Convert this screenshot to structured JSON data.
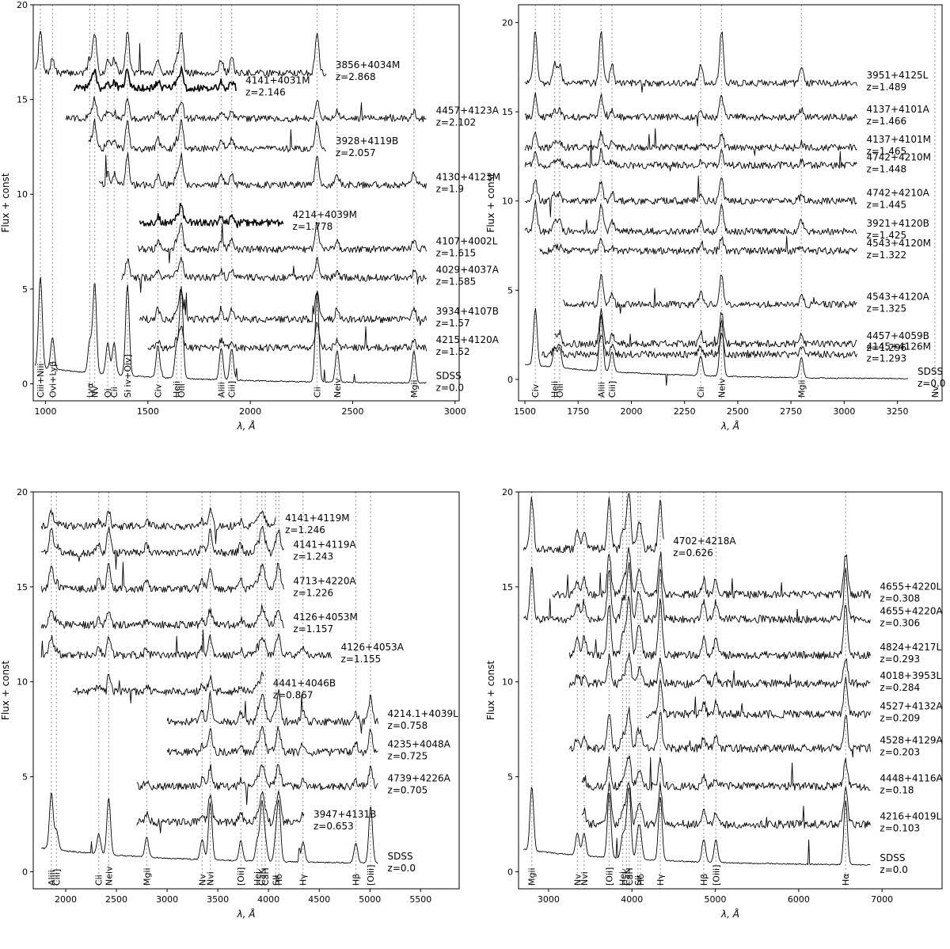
{
  "chart_data": [
    {
      "type": "line",
      "panel": "top-left",
      "xlabel": "λ, Å",
      "ylabel": "Flux + const",
      "xlim": [
        940,
        3020
      ],
      "ylim": [
        -0.9,
        20
      ],
      "xticks": [
        1000,
        1500,
        2000,
        2500,
        3000
      ],
      "yticks": [
        0,
        5,
        10,
        15,
        20
      ],
      "lines": [
        {
          "x": 975,
          "label": "Ciii+Niii"
        },
        {
          "x": 1034,
          "label": "Ovi+Lyβ"
        },
        {
          "x": 1216,
          "label": "Lyα"
        },
        {
          "x": 1240,
          "label": "Nv"
        },
        {
          "x": 1304,
          "label": "Oi"
        },
        {
          "x": 1335,
          "label": "Cii"
        },
        {
          "x": 1400,
          "label": "Si iv+Oiv]"
        },
        {
          "x": 1549,
          "label": "Civ"
        },
        {
          "x": 1640,
          "label": "Heii"
        },
        {
          "x": 1663,
          "label": "Oiii"
        },
        {
          "x": 1858,
          "label": "Aliii"
        },
        {
          "x": 1909,
          "label": "Ciii]"
        },
        {
          "x": 2326,
          "label": "Cii"
        },
        {
          "x": 2424,
          "label": "Neiv"
        },
        {
          "x": 2799,
          "label": "Mgii"
        }
      ],
      "series": [
        {
          "label": "3856+4034M",
          "z": "z=2.868",
          "x0": 950,
          "x1": 2370,
          "base": 16.4,
          "amp": 2.2,
          "lw": 0.9
        },
        {
          "label": "4141+4031M",
          "z": "z=2.146",
          "x0": 1140,
          "x1": 1930,
          "base": 15.6,
          "amp": 1.0,
          "lw": 1.6
        },
        {
          "label": "4457+4123A",
          "z": "z=2.102",
          "x0": 1100,
          "x1": 2860,
          "base": 14.0,
          "amp": 1.0,
          "lw": 0.9
        },
        {
          "label": "3928+4119B",
          "z": "z=2.057",
          "x0": 1210,
          "x1": 2370,
          "base": 12.4,
          "amp": 1.4,
          "lw": 0.9
        },
        {
          "label": "4130+4123M",
          "z": "z=1.9",
          "x0": 1260,
          "x1": 2860,
          "base": 10.5,
          "amp": 1.6,
          "lw": 0.9
        },
        {
          "label": "4214+4039M",
          "z": "z=1.778",
          "x0": 1460,
          "x1": 2160,
          "base": 8.5,
          "amp": 1.0,
          "lw": 1.4
        },
        {
          "label": "4107+4002L",
          "z": "z=1.615",
          "x0": 1450,
          "x1": 2860,
          "base": 7.1,
          "amp": 1.4,
          "lw": 0.9
        },
        {
          "label": "4029+4037A",
          "z": "z=1.585",
          "x0": 1370,
          "x1": 2860,
          "base": 5.6,
          "amp": 1.0,
          "lw": 0.9
        },
        {
          "label": "3934+4107B",
          "z": "z=1.57",
          "x0": 1460,
          "x1": 2860,
          "base": 3.4,
          "amp": 1.6,
          "lw": 0.9
        },
        {
          "label": "4215+4120A",
          "z": "z=1.52",
          "x0": 1500,
          "x1": 2860,
          "base": 1.9,
          "amp": 1.2,
          "lw": 0.9
        },
        {
          "label": "SDSS",
          "z": "z=0.0",
          "x0": 950,
          "x1": 2860,
          "base": 0.0,
          "amp": 4.8,
          "lw": 0.9
        }
      ]
    },
    {
      "type": "line",
      "panel": "top-right",
      "xlabel": "λ, Å",
      "ylabel": "Flux + const",
      "xlim": [
        1470,
        3460
      ],
      "ylim": [
        -1.2,
        21
      ],
      "xticks": [
        1500,
        1750,
        2000,
        2250,
        2500,
        2750,
        3000,
        3250
      ],
      "yticks": [
        0,
        5,
        10,
        15,
        20
      ],
      "lines": [
        {
          "x": 1549,
          "label": "Civ"
        },
        {
          "x": 1640,
          "label": "Heii"
        },
        {
          "x": 1663,
          "label": "Oiii"
        },
        {
          "x": 1858,
          "label": "Aliii"
        },
        {
          "x": 1909,
          "label": "Ciii]"
        },
        {
          "x": 2326,
          "label": "Cii"
        },
        {
          "x": 2424,
          "label": "Neiv"
        },
        {
          "x": 2799,
          "label": "Mgii"
        },
        {
          "x": 3426,
          "label": "Nv"
        }
      ],
      "series": [
        {
          "label": "3951+4125L",
          "z": "z=1.489",
          "x0": 1500,
          "x1": 3060,
          "base": 16.6,
          "amp": 3.0,
          "lw": 0.9
        },
        {
          "label": "4137+4101A",
          "z": "z=1.466",
          "x0": 1500,
          "x1": 3060,
          "base": 14.7,
          "amp": 1.2,
          "lw": 0.9
        },
        {
          "label": "4137+4101M",
          "z": "z=1.465",
          "x0": 1500,
          "x1": 3060,
          "base": 13.0,
          "amp": 0.8,
          "lw": 0.9
        },
        {
          "label": "4742+4210M",
          "z": "z=1.448",
          "x0": 1500,
          "x1": 3060,
          "base": 12.0,
          "amp": 0.8,
          "lw": 0.9
        },
        {
          "label": "4742+4210A",
          "z": "z=1.445",
          "x0": 1500,
          "x1": 3060,
          "base": 10.0,
          "amp": 1.2,
          "lw": 0.9
        },
        {
          "label": "3921+4120B",
          "z": "z=1.425",
          "x0": 1500,
          "x1": 3060,
          "base": 8.3,
          "amp": 1.6,
          "lw": 0.9
        },
        {
          "label": "4543+4120M",
          "z": "z=1.322",
          "x0": 1570,
          "x1": 3060,
          "base": 7.2,
          "amp": 0.7,
          "lw": 0.9
        },
        {
          "label": "4543+4120A",
          "z": "z=1.325",
          "x0": 1680,
          "x1": 3060,
          "base": 4.2,
          "amp": 1.8,
          "lw": 0.9
        },
        {
          "label": "4457+4059B",
          "z": "z=1.296",
          "x0": 1640,
          "x1": 3060,
          "base": 2.0,
          "amp": 1.8,
          "lw": 0.9
        },
        {
          "label": "4145+4126M",
          "z": "z=1.293",
          "x0": 1580,
          "x1": 3060,
          "base": 1.4,
          "amp": 1.2,
          "lw": 0.9
        },
        {
          "label": "SDSS",
          "z": "z=0.0",
          "x0": 1500,
          "x1": 3300,
          "base": 0.0,
          "amp": 3.2,
          "lw": 0.9
        }
      ]
    },
    {
      "type": "line",
      "panel": "bottom-left",
      "xlabel": "λ, Å",
      "ylabel": "Flux + const",
      "xlim": [
        1680,
        5880
      ],
      "ylim": [
        -0.9,
        20
      ],
      "xticks": [
        2000,
        2500,
        3000,
        3500,
        4000,
        4500,
        5000,
        5500
      ],
      "yticks": [
        0,
        5,
        10,
        15,
        20
      ],
      "lines": [
        {
          "x": 1858,
          "label": "Aliii"
        },
        {
          "x": 1909,
          "label": "Ciii]"
        },
        {
          "x": 2326,
          "label": "Cii"
        },
        {
          "x": 2424,
          "label": "Neiv"
        },
        {
          "x": 2799,
          "label": "Mgii"
        },
        {
          "x": 3346,
          "label": "Nv"
        },
        {
          "x": 3426,
          "label": "Nvi"
        },
        {
          "x": 3727,
          "label": "[Oii]"
        },
        {
          "x": 3889,
          "label": "Hei"
        },
        {
          "x": 3934,
          "label": "CaK"
        },
        {
          "x": 3968,
          "label": "CaH"
        },
        {
          "x": 4072,
          "label": "SII"
        },
        {
          "x": 4102,
          "label": "Hδ"
        },
        {
          "x": 4340,
          "label": "Hγ"
        },
        {
          "x": 4861,
          "label": "Hβ"
        },
        {
          "x": 5007,
          "label": "[Oiii]"
        }
      ],
      "series": [
        {
          "label": "4141+4119M",
          "z": "z=1.246",
          "x0": 1760,
          "x1": 4070,
          "base": 18.2,
          "amp": 0.8,
          "lw": 0.9
        },
        {
          "label": "4141+4119A",
          "z": "z=1.243",
          "x0": 1760,
          "x1": 4150,
          "base": 16.8,
          "amp": 1.2,
          "lw": 0.9
        },
        {
          "label": "4713+4220A",
          "z": "z=1.226",
          "x0": 1760,
          "x1": 4150,
          "base": 14.9,
          "amp": 1.2,
          "lw": 0.9
        },
        {
          "label": "4126+4053M",
          "z": "z=1.157",
          "x0": 1760,
          "x1": 4150,
          "base": 13.0,
          "amp": 0.8,
          "lw": 0.9
        },
        {
          "label": "4126+4053A",
          "z": "z=1.155",
          "x0": 1760,
          "x1": 4620,
          "base": 11.4,
          "amp": 1.0,
          "lw": 0.9
        },
        {
          "label": "4441+4046B",
          "z": "z=0.867",
          "x0": 2070,
          "x1": 3950,
          "base": 9.5,
          "amp": 0.8,
          "lw": 0.9
        },
        {
          "label": "4214.1+4039L",
          "z": "z=0.758",
          "x0": 3000,
          "x1": 5080,
          "base": 7.9,
          "amp": 1.4,
          "lw": 0.9
        },
        {
          "label": "4235+4048A",
          "z": "z=0.725",
          "x0": 3000,
          "x1": 5080,
          "base": 6.3,
          "amp": 1.2,
          "lw": 0.9
        },
        {
          "label": "4739+4226A",
          "z": "z=0.705",
          "x0": 2700,
          "x1": 5080,
          "base": 4.5,
          "amp": 1.0,
          "lw": 0.9
        },
        {
          "label": "3947+4131B",
          "z": "z=0.653",
          "x0": 2700,
          "x1": 4350,
          "base": 2.6,
          "amp": 1.4,
          "lw": 0.9
        },
        {
          "label": "SDSS",
          "z": "z=0.0",
          "x0": 1760,
          "x1": 5080,
          "base": 0.4,
          "amp": 3.0,
          "lw": 0.9
        }
      ]
    },
    {
      "type": "line",
      "panel": "bottom-right",
      "xlabel": "λ, Å",
      "ylabel": "Flux + const",
      "xlim": [
        2640,
        7720
      ],
      "ylim": [
        -0.9,
        20
      ],
      "xticks": [
        3000,
        4000,
        5000,
        6000,
        7000
      ],
      "yticks": [
        0,
        5,
        10,
        15,
        20
      ],
      "lines": [
        {
          "x": 2799,
          "label": "Mgii"
        },
        {
          "x": 3346,
          "label": "Nv"
        },
        {
          "x": 3426,
          "label": "Nvi"
        },
        {
          "x": 3727,
          "label": "[Oii]"
        },
        {
          "x": 3889,
          "label": "Hei"
        },
        {
          "x": 3934,
          "label": "CaK"
        },
        {
          "x": 3968,
          "label": "CaH"
        },
        {
          "x": 4072,
          "label": "Sii"
        },
        {
          "x": 4102,
          "label": "Hδ"
        },
        {
          "x": 4340,
          "label": "Hγ"
        },
        {
          "x": 4861,
          "label": "Hβ"
        },
        {
          "x": 5007,
          "label": "[Oiii]"
        },
        {
          "x": 6563,
          "label": "Hα"
        }
      ],
      "series": [
        {
          "label": "4702+4218A",
          "z": "z=0.626",
          "x0": 2700,
          "x1": 4380,
          "base": 17.0,
          "amp": 2.6,
          "lw": 0.9
        },
        {
          "label": "4655+4220L",
          "z": "z=0.308",
          "x0": 3050,
          "x1": 6860,
          "base": 14.6,
          "amp": 2.2,
          "lw": 0.9
        },
        {
          "label": "4655+4220A",
          "z": "z=0.306",
          "x0": 2700,
          "x1": 6860,
          "base": 13.3,
          "amp": 2.6,
          "lw": 0.9
        },
        {
          "label": "4824+4217L",
          "z": "z=0.293",
          "x0": 3250,
          "x1": 6860,
          "base": 11.4,
          "amp": 2.8,
          "lw": 0.9
        },
        {
          "label": "4018+3953L",
          "z": "z=0.284",
          "x0": 3250,
          "x1": 6860,
          "base": 9.9,
          "amp": 1.4,
          "lw": 0.9
        },
        {
          "label": "4527+4132A",
          "z": "z=0.209",
          "x0": 4170,
          "x1": 6860,
          "base": 8.3,
          "amp": 1.8,
          "lw": 0.9
        },
        {
          "label": "4528+4129A",
          "z": "z=0.203",
          "x0": 3250,
          "x1": 6860,
          "base": 6.5,
          "amp": 1.8,
          "lw": 0.9
        },
        {
          "label": "4448+4116A",
          "z": "z=0.18",
          "x0": 3400,
          "x1": 6860,
          "base": 4.5,
          "amp": 1.4,
          "lw": 0.9
        },
        {
          "label": "4216+4019L",
          "z": "z=0.103",
          "x0": 3400,
          "x1": 6860,
          "base": 2.5,
          "amp": 2.0,
          "lw": 0.9
        },
        {
          "label": "SDSS",
          "z": "z=0.0",
          "x0": 2700,
          "x1": 6860,
          "base": 0.3,
          "amp": 3.4,
          "lw": 0.9
        }
      ]
    }
  ]
}
